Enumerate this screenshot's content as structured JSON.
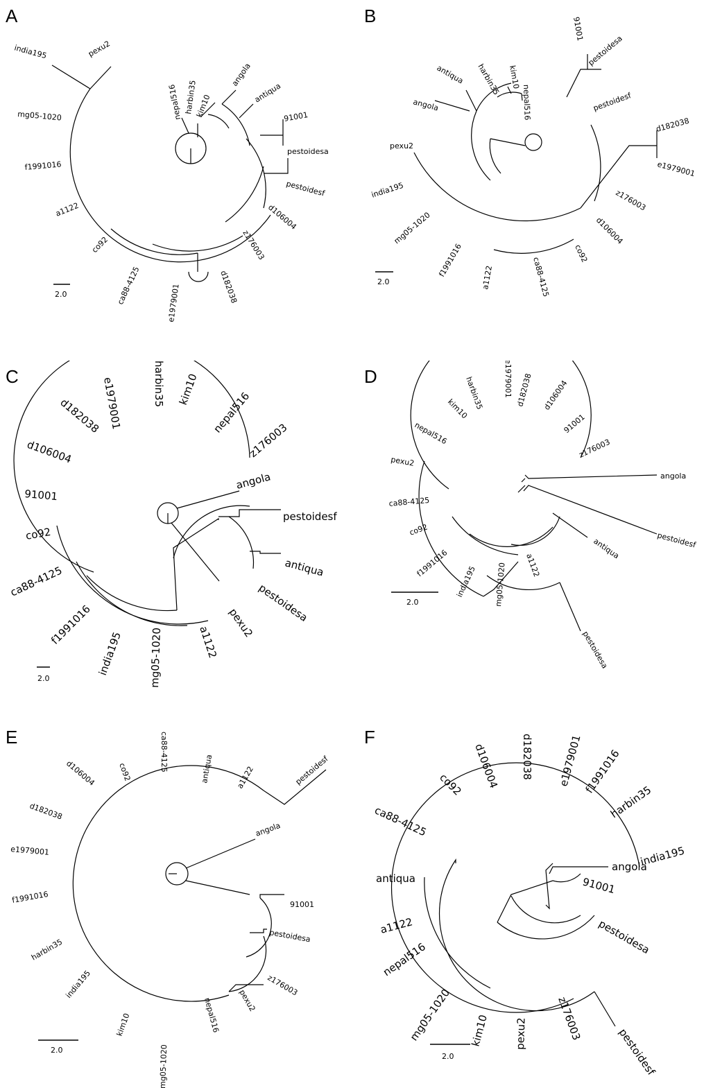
{
  "figure": {
    "panels": [
      {
        "id": "A",
        "label": "A",
        "scale_label": "2.0",
        "leaves": [
          "pexu2",
          "india195",
          "mg05-1020",
          "f1991016",
          "a1122",
          "co92",
          "ca88-4125",
          "e1979001",
          "d182038",
          "z176003",
          "d106004",
          "pestoidesf",
          "pestoidesa",
          "91001",
          "antiqua",
          "angola",
          "kim10",
          "harbin35",
          "nepal516"
        ]
      },
      {
        "id": "B",
        "label": "B",
        "scale_label": "2.0",
        "leaves": [
          "91001",
          "pestoidesa",
          "pestoidesf",
          "d182038",
          "e1979001",
          "z176003",
          "d106004",
          "co92",
          "ca88-4125",
          "a1122",
          "f1991016",
          "mg05-1020",
          "india195",
          "pexu2",
          "angola",
          "antiqua",
          "harbin35",
          "kim10",
          "nepal516"
        ]
      },
      {
        "id": "C",
        "label": "C",
        "scale_label": "2.0",
        "leaves": [
          "e1979001",
          "harbin35",
          "kim10",
          "nepal516",
          "z176003",
          "d182038",
          "d106004",
          "91001",
          "co92",
          "ca88-4125",
          "f1991016",
          "india195",
          "mg05-1020",
          "a1122",
          "pexu2",
          "angola",
          "pestoidesf",
          "antiqua",
          "pestoidesa"
        ]
      },
      {
        "id": "D",
        "label": "D",
        "scale_label": "2.0",
        "leaves": [
          "e1979001",
          "d182038",
          "d106004",
          "91001",
          "z176003",
          "harbin35",
          "kim10",
          "nepal516",
          "pexu2",
          "ca88-4125",
          "co92",
          "f1991016",
          "india195",
          "mg05-1020",
          "a1122",
          "angola",
          "pestoidesf",
          "antiqua",
          "pestoidesa"
        ]
      },
      {
        "id": "E",
        "label": "E",
        "scale_label": "2.0",
        "leaves": [
          "ca88-4125",
          "antiqua",
          "a1122",
          "pestoidesf",
          "co92",
          "d106004",
          "d182038",
          "e1979001",
          "f1991016",
          "harbin35",
          "india195",
          "kim10",
          "mg05-1020",
          "nepal516",
          "pexu2",
          "z176003",
          "angola",
          "91001",
          "pestoidesa"
        ]
      },
      {
        "id": "F",
        "label": "F",
        "scale_label": "2.0",
        "leaves": [
          "d182038",
          "e1979001",
          "f1991016",
          "harbin35",
          "india195",
          "d106004",
          "co92",
          "ca88-4125",
          "antiqua",
          "a1122",
          "nepal516",
          "mg05-1020",
          "kim10",
          "pexu2",
          "z176003",
          "pestoidesf",
          "angola",
          "91001",
          "pestoidesa"
        ]
      }
    ]
  }
}
